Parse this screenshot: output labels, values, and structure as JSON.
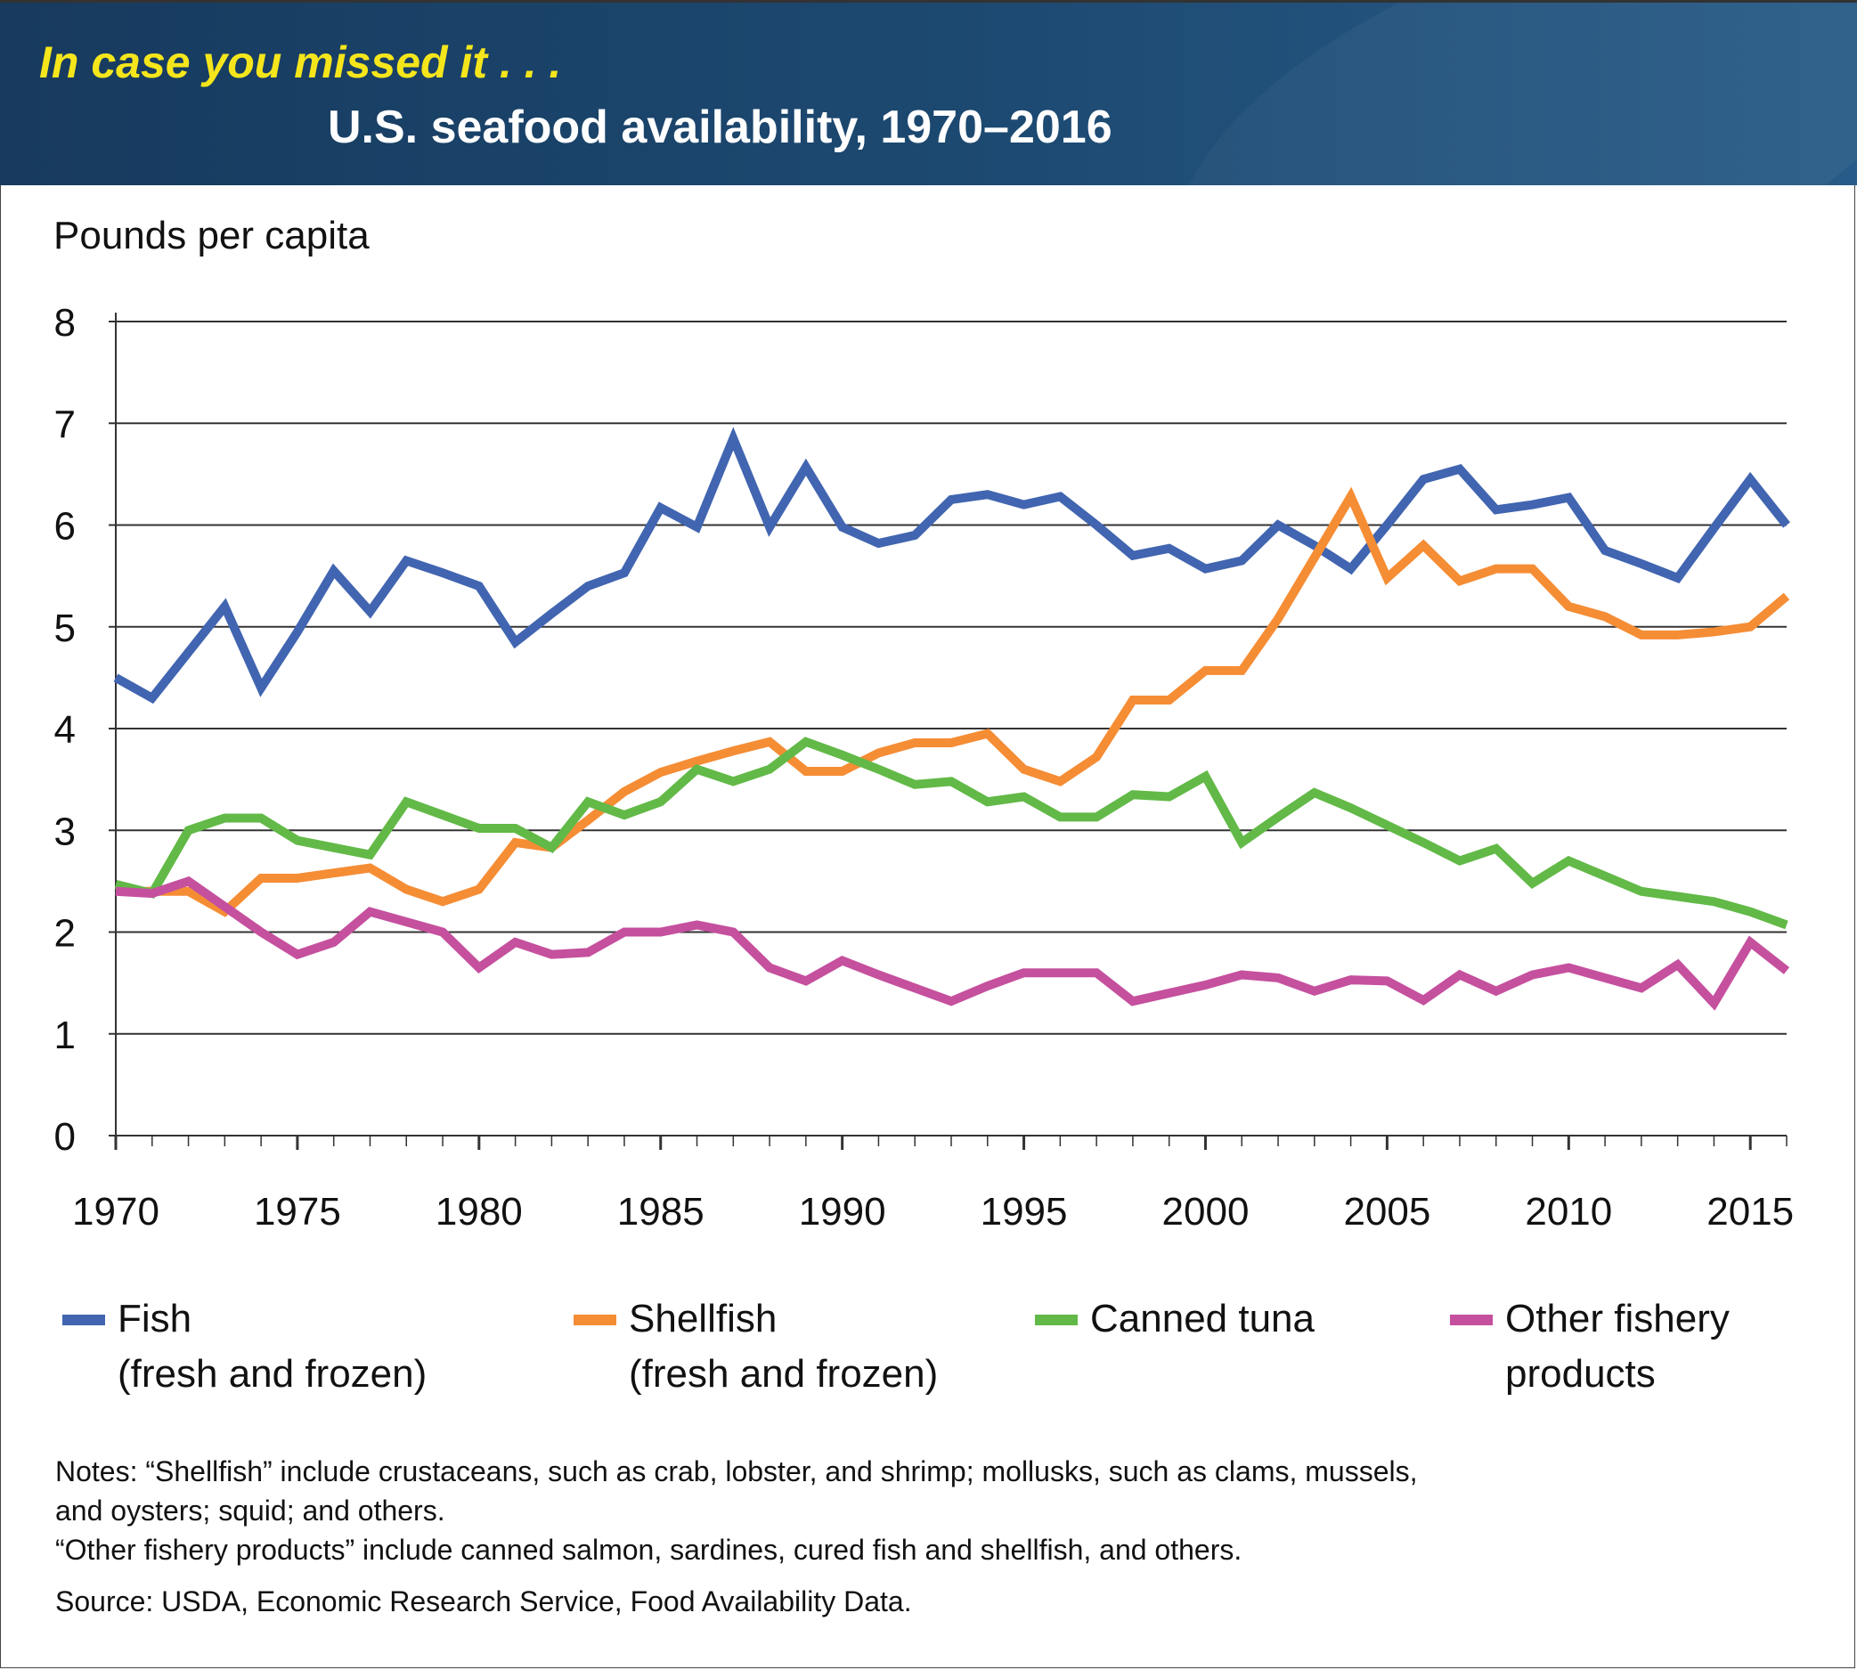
{
  "header": {
    "kicker": "In case you missed it . . .",
    "title": "U.S. seafood availability, 1970–2016"
  },
  "chart_data": {
    "type": "line",
    "title": "U.S. seafood availability, 1970–2016",
    "ylabel": "Pounds per capita",
    "xlabel": "",
    "ylim": [
      0,
      8
    ],
    "yticks": [
      0,
      1,
      2,
      3,
      4,
      5,
      6,
      7,
      8
    ],
    "xlim": [
      1970,
      2016
    ],
    "xtick_labels": [
      "1970",
      "1975",
      "1980",
      "1985",
      "1990",
      "1995",
      "2000",
      "2005",
      "2010",
      "2015"
    ],
    "grid": true,
    "legend_position": "bottom",
    "x": [
      1970,
      1971,
      1972,
      1973,
      1974,
      1975,
      1976,
      1977,
      1978,
      1979,
      1980,
      1981,
      1982,
      1983,
      1984,
      1985,
      1986,
      1987,
      1988,
      1989,
      1990,
      1991,
      1992,
      1993,
      1994,
      1995,
      1996,
      1997,
      1998,
      1999,
      2000,
      2001,
      2002,
      2003,
      2004,
      2005,
      2006,
      2007,
      2008,
      2009,
      2010,
      2011,
      2012,
      2013,
      2014,
      2015,
      2016
    ],
    "series": [
      {
        "name": "Fish (fresh and frozen)",
        "label_line1": "Fish",
        "label_line2": "(fresh and frozen)",
        "color": "#4165b0",
        "values": [
          4.5,
          4.3,
          4.75,
          5.2,
          4.4,
          4.95,
          5.55,
          5.15,
          5.65,
          5.53,
          5.4,
          4.85,
          5.13,
          5.4,
          5.53,
          6.17,
          5.98,
          6.85,
          5.98,
          6.57,
          5.98,
          5.82,
          5.9,
          6.25,
          6.3,
          6.2,
          6.28,
          6.0,
          5.7,
          5.77,
          5.57,
          5.65,
          6.0,
          5.8,
          5.57,
          6.0,
          6.45,
          6.55,
          6.15,
          6.2,
          6.27,
          5.75,
          5.62,
          5.48,
          5.97,
          6.45,
          6.0
        ]
      },
      {
        "name": "Shellfish (fresh and frozen)",
        "label_line1": "Shellfish",
        "label_line2": "(fresh and frozen)",
        "color": "#f58d35",
        "values": [
          2.4,
          2.4,
          2.4,
          2.2,
          2.53,
          2.53,
          2.58,
          2.63,
          2.42,
          2.3,
          2.42,
          2.88,
          2.83,
          3.1,
          3.38,
          3.57,
          3.68,
          3.78,
          3.87,
          3.58,
          3.58,
          3.76,
          3.86,
          3.86,
          3.95,
          3.6,
          3.48,
          3.72,
          4.28,
          4.28,
          4.57,
          4.57,
          5.08,
          5.68,
          6.28,
          5.48,
          5.8,
          5.45,
          5.57,
          5.57,
          5.2,
          5.1,
          4.92,
          4.92,
          4.95,
          5.0,
          5.3
        ]
      },
      {
        "name": "Canned tuna",
        "label_line1": "Canned tuna",
        "label_line2": "",
        "color": "#62b947",
        "values": [
          2.47,
          2.38,
          3.0,
          3.12,
          3.12,
          2.9,
          2.83,
          2.76,
          3.28,
          3.15,
          3.02,
          3.02,
          2.83,
          3.28,
          3.15,
          3.28,
          3.6,
          3.48,
          3.6,
          3.87,
          3.74,
          3.6,
          3.45,
          3.48,
          3.28,
          3.33,
          3.13,
          3.13,
          3.35,
          3.33,
          3.53,
          2.88,
          3.13,
          3.37,
          3.22,
          3.05,
          2.88,
          2.7,
          2.82,
          2.48,
          2.7,
          2.55,
          2.4,
          2.35,
          2.3,
          2.2,
          2.07
        ]
      },
      {
        "name": "Other fishery products",
        "label_line1": "Other fishery",
        "label_line2": "products",
        "color": "#c5509e",
        "values": [
          2.4,
          2.38,
          2.5,
          2.25,
          2.0,
          1.78,
          1.9,
          2.2,
          2.1,
          2.0,
          1.65,
          1.9,
          1.78,
          1.8,
          2.0,
          2.0,
          2.07,
          2.0,
          1.65,
          1.52,
          1.72,
          1.58,
          1.45,
          1.32,
          1.47,
          1.6,
          1.6,
          1.6,
          1.32,
          1.4,
          1.48,
          1.58,
          1.55,
          1.42,
          1.53,
          1.52,
          1.33,
          1.58,
          1.42,
          1.58,
          1.65,
          1.55,
          1.45,
          1.68,
          1.3,
          1.9,
          1.62
        ]
      }
    ]
  },
  "notes": {
    "line1": "Notes: “Shellfish” include crustaceans, such as crab, lobster, and shrimp; mollusks, such as clams, mussels,",
    "line2": "and oysters; squid; and others.",
    "line3": "“Other fishery products” include canned salmon, sardines, cured fish and shellfish, and others.",
    "source": "Source: USDA, Economic Research Service, Food Availability Data."
  }
}
